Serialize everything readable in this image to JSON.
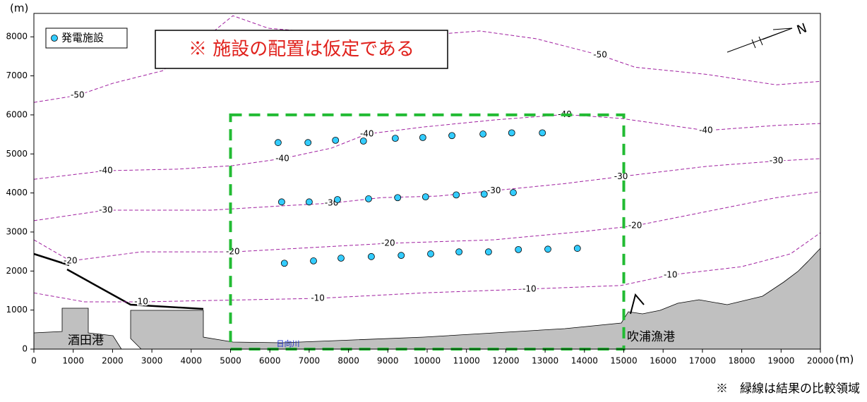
{
  "chart_data": {
    "type": "scatter",
    "x_label": "(m)",
    "y_label": "(m)",
    "xlim": [
      0,
      20000
    ],
    "ylim": [
      0,
      8600
    ],
    "xticks": [
      0,
      1000,
      2000,
      3000,
      4000,
      5000,
      6000,
      7000,
      8000,
      9000,
      10000,
      11000,
      12000,
      13000,
      14000,
      15000,
      16000,
      17000,
      18000,
      19000,
      20000
    ],
    "yticks": [
      0,
      1000,
      2000,
      3000,
      4000,
      5000,
      6000,
      7000,
      8000
    ],
    "series": [
      {
        "name": "発電施設",
        "color": "#33ccff",
        "x": [
          6210,
          6970,
          7670,
          8380,
          9190,
          9890,
          10630,
          11420,
          12150,
          12930,
          6300,
          7000,
          7720,
          8510,
          9250,
          9960,
          10740,
          11450,
          12190,
          6370,
          7110,
          7810,
          8580,
          9340,
          10090,
          10810,
          11560,
          12320,
          13070,
          13820
        ],
        "y": [
          5290,
          5290,
          5350,
          5330,
          5400,
          5420,
          5470,
          5510,
          5540,
          5540,
          3770,
          3770,
          3830,
          3850,
          3880,
          3900,
          3950,
          3970,
          4010,
          2200,
          2260,
          2330,
          2370,
          2400,
          2440,
          2490,
          2490,
          2550,
          2560,
          2580
        ]
      }
    ],
    "contours": [
      {
        "label": "-50",
        "color": "#a020a0",
        "x": [
          0,
          1110,
          2010,
          3270,
          4340,
          5060,
          5960,
          7750,
          9910,
          11340,
          12780,
          14400,
          15290,
          17090,
          18880,
          20000
        ],
        "y": [
          6320,
          6500,
          6810,
          7130,
          7950,
          8540,
          8220,
          8070,
          8040,
          8150,
          7950,
          7530,
          7220,
          7040,
          6770,
          6860
        ]
      },
      {
        "label": "-40",
        "color": "#a020a0",
        "x": [
          0,
          1830,
          3630,
          5060,
          6320,
          7570,
          8470,
          9910,
          11700,
          13500,
          14930,
          17090,
          18880,
          20000
        ],
        "y": [
          4350,
          4570,
          4610,
          4700,
          4880,
          5150,
          5510,
          5690,
          5870,
          6010,
          5910,
          5600,
          5730,
          5780
        ]
      },
      {
        "label": "-30",
        "color": "#a020a0",
        "x": [
          0,
          1830,
          4520,
          6320,
          7570,
          8830,
          10270,
          11700,
          13500,
          14930,
          17090,
          18880,
          20000
        ],
        "y": [
          3290,
          3560,
          3560,
          3670,
          3740,
          3880,
          3920,
          4060,
          4240,
          4420,
          4680,
          4820,
          4880
        ]
      },
      {
        "label": "-20",
        "color": "#a020a0",
        "x": [
          0,
          930,
          2730,
          5060,
          6680,
          9010,
          11700,
          14040,
          15290,
          17090,
          18880,
          20000
        ],
        "y": [
          2800,
          2260,
          2490,
          2490,
          2580,
          2710,
          2800,
          3020,
          3160,
          3520,
          3880,
          4030
        ]
      },
      {
        "label": "-10",
        "color": "#a020a0",
        "x": [
          0,
          1290,
          2730,
          5240,
          7220,
          9910,
          12600,
          14930,
          16190,
          17990,
          19240,
          20000
        ],
        "y": [
          1440,
          1210,
          1210,
          1260,
          1300,
          1440,
          1540,
          1630,
          1900,
          2110,
          2440,
          2980
        ]
      }
    ],
    "comparison_area": {
      "x": [
        5000,
        15000
      ],
      "y": [
        0,
        6000
      ],
      "color": "#22bb33"
    },
    "note": "※  施設の配置は仮定である",
    "caption": "※　緑線は結果の比較領域",
    "places": [
      "酒田港",
      "吹浦漁港",
      "日向川"
    ],
    "north": "N"
  }
}
